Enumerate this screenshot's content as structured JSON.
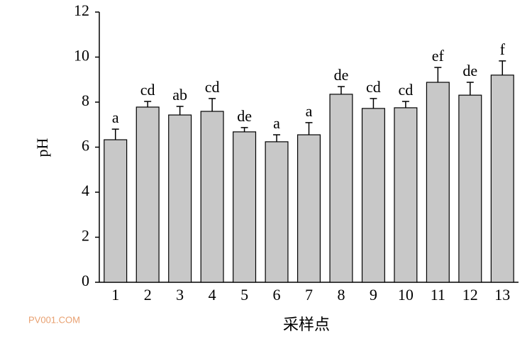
{
  "chart_data": {
    "type": "bar",
    "xlabel": "采样点",
    "ylabel": "pH",
    "categories": [
      "1",
      "2",
      "3",
      "4",
      "5",
      "6",
      "7",
      "8",
      "9",
      "10",
      "11",
      "12",
      "13"
    ],
    "values": [
      6.33,
      7.78,
      7.43,
      7.59,
      6.68,
      6.24,
      6.55,
      8.35,
      7.72,
      7.75,
      8.88,
      8.31,
      9.2
    ],
    "errors": [
      0.47,
      0.25,
      0.38,
      0.57,
      0.19,
      0.31,
      0.54,
      0.34,
      0.44,
      0.28,
      0.66,
      0.57,
      0.63
    ],
    "letters": [
      "a",
      "cd",
      "ab",
      "cd",
      "de",
      "a",
      "a",
      "de",
      "cd",
      "cd",
      "ef",
      "de",
      "f"
    ],
    "color": "#c8c8c8",
    "ylim": [
      0,
      12
    ],
    "yticks": [
      0,
      2,
      4,
      6,
      8,
      10,
      12
    ]
  },
  "watermark": "PV001.COM"
}
